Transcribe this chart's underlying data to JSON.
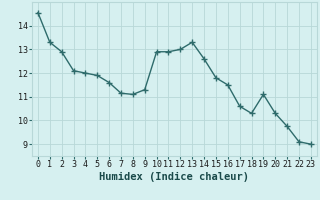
{
  "x": [
    0,
    1,
    2,
    3,
    4,
    5,
    6,
    7,
    8,
    9,
    10,
    11,
    12,
    13,
    14,
    15,
    16,
    17,
    18,
    19,
    20,
    21,
    22,
    23
  ],
  "y": [
    14.55,
    13.3,
    12.9,
    12.1,
    12.0,
    11.9,
    11.6,
    11.15,
    11.1,
    11.3,
    12.9,
    12.9,
    13.0,
    13.3,
    12.6,
    11.8,
    11.5,
    10.6,
    10.3,
    11.1,
    10.3,
    9.75,
    9.1,
    9.0
  ],
  "line_color": "#2e6b6b",
  "marker": "+",
  "marker_size": 4,
  "marker_lw": 1.0,
  "line_width": 1.0,
  "bg_color": "#d6f0f0",
  "grid_color": "#b8d8d8",
  "xlabel": "Humidex (Indice chaleur)",
  "xlabel_fontsize": 7.5,
  "tick_fontsize": 6,
  "xlim": [
    -0.5,
    23.5
  ],
  "ylim": [
    8.5,
    15.0
  ],
  "yticks": [
    9,
    10,
    11,
    12,
    13,
    14
  ],
  "xticks": [
    0,
    1,
    2,
    3,
    4,
    5,
    6,
    7,
    8,
    9,
    10,
    11,
    12,
    13,
    14,
    15,
    16,
    17,
    18,
    19,
    20,
    21,
    22,
    23
  ]
}
